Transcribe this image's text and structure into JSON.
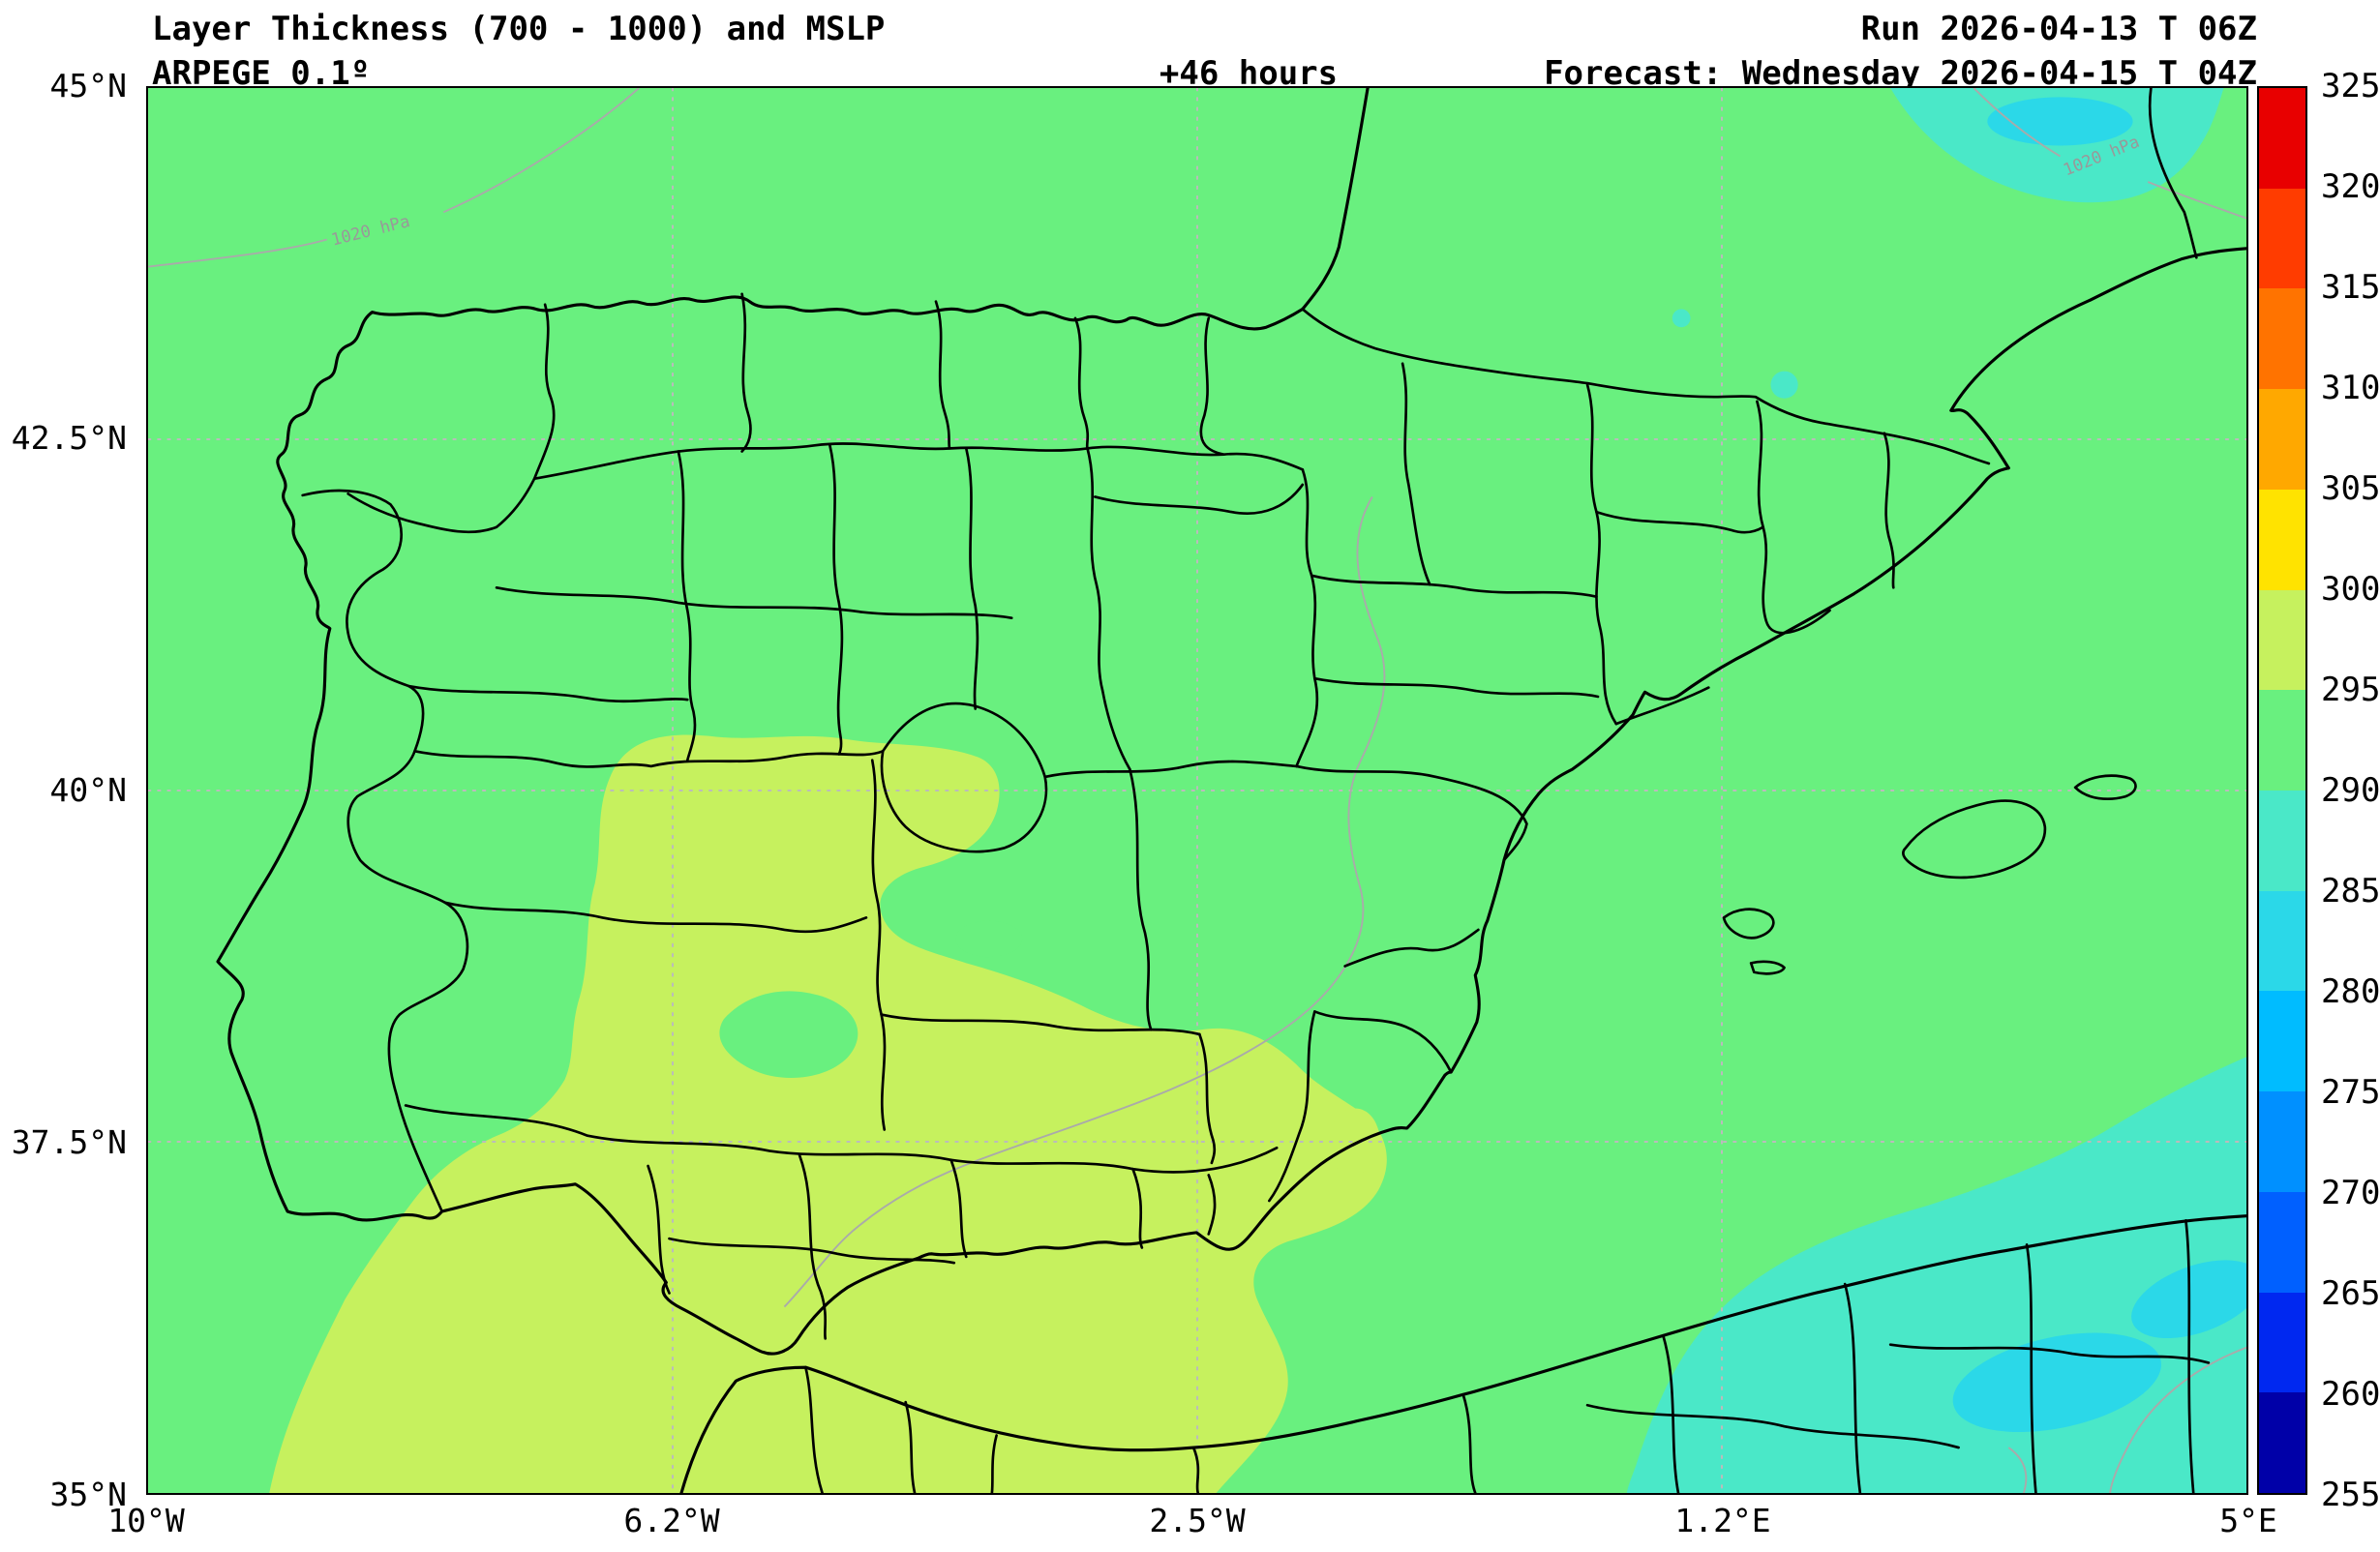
{
  "header": {
    "title": "Layer Thickness (700 - 1000) and MSLP",
    "model": "ARPEGE 0.1º",
    "lead_time": "+46 hours",
    "run": "Run 2026-04-13 T 06Z",
    "forecast": "Forecast: Wednesday 2026-04-15 T 04Z"
  },
  "chart_data": {
    "type": "heatmap",
    "title": "Layer Thickness (700 - 1000) and MSLP",
    "model": "ARPEGE 0.1º",
    "lead_time_hours": 46,
    "run_time": "2026-04-13 06Z",
    "forecast_time": "Wednesday 2026-04-15 04Z",
    "region": "Iberian Peninsula and western Mediterranean",
    "x_axis": {
      "ticks": [
        "10°W",
        "6.2°W",
        "2.5°W",
        "1.2°E",
        "5°E"
      ],
      "range_deg_lon": [
        -10,
        5
      ]
    },
    "y_axis": {
      "ticks": [
        "45°N",
        "42.5°N",
        "40°N",
        "37.5°N",
        "35°N"
      ],
      "range_deg_lat": [
        35,
        45
      ]
    },
    "grid": "on, dotted gray at labeled ticks",
    "legend_position": "vertical colorbar, right side",
    "colorbar": {
      "ticks": [
        255,
        260,
        265,
        270,
        275,
        280,
        285,
        290,
        295,
        300,
        305,
        310,
        315,
        320,
        325
      ],
      "range": [
        255,
        325
      ],
      "segment_colors_bottom_to_top": [
        "#0000A8",
        "#0028F0",
        "#0060FF",
        "#0090FF",
        "#00BCFF",
        "#2BD8E8",
        "#4AE8C8",
        "#69F07F",
        "#C6F15E",
        "#FFE300",
        "#FFA800",
        "#FF7300",
        "#FF3C00",
        "#E80000"
      ]
    },
    "field_regions": [
      {
        "band": "290-295",
        "description": "dominant thickness value over most of Iberia and surrounding seas (green)"
      },
      {
        "band": "295-300",
        "description": "south-west quadrant: Extremadura, Guadalquivir valley, Gulf of Cadiz, Alboran Sea approaches (yellow-green)"
      },
      {
        "band": "285-290",
        "description": "north-east corner near Gulf of Lion and south-east corner along Algerian coast (turquoise)"
      },
      {
        "band": "280-285",
        "description": "small deeper-cyan cores inside the north-east and south-east turquoise areas"
      }
    ],
    "isobars": {
      "value_hPa": 1020,
      "labels": [
        "1020 hPa",
        "1020 hPa"
      ],
      "style": "thin light-gray contours with inline labels"
    }
  },
  "colors": {
    "band255": "#0000A8",
    "band260": "#0028F0",
    "band265": "#0060FF",
    "band270": "#0090FF",
    "band275": "#00BCFF",
    "band280": "#2BD8E8",
    "band285": "#4AE8C8",
    "band290": "#69F07F",
    "band295": "#C6F15E",
    "band300": "#FFE300",
    "band305": "#FFA800",
    "band310": "#FF7300",
    "band315": "#FF3C00",
    "band320": "#E80000",
    "grid": "#BBBBBB",
    "boundary": "#000000",
    "isobar": "#AAAAAA",
    "isobar_label": "#999999",
    "frame": "#000000",
    "background": "#FFFFFF",
    "text": "#000000"
  },
  "layout_labels": {
    "colorbar_name": "thickness colorbar",
    "map_name": "forecast map"
  }
}
